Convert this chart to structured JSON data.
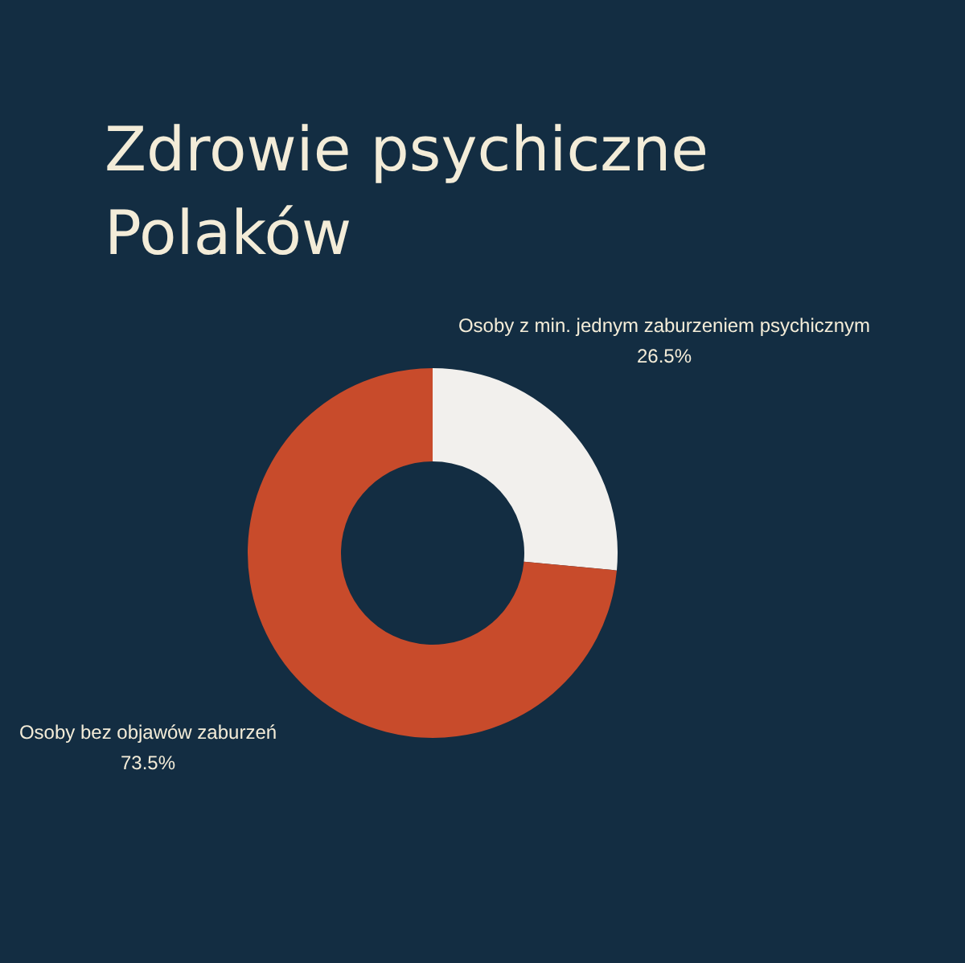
{
  "chart_data": {
    "type": "donut",
    "title": "Zdrowie psychiczne Polaków",
    "categories": [
      "Osoby z min. jednym zaburzeniem psychicznym",
      "Osoby bez objawów zaburzeń"
    ],
    "values": [
      26.5,
      73.5
    ],
    "colors": [
      "#f2f0ed",
      "#c84b2b"
    ],
    "value_labels": [
      "26.5%",
      "73.5%"
    ]
  }
}
